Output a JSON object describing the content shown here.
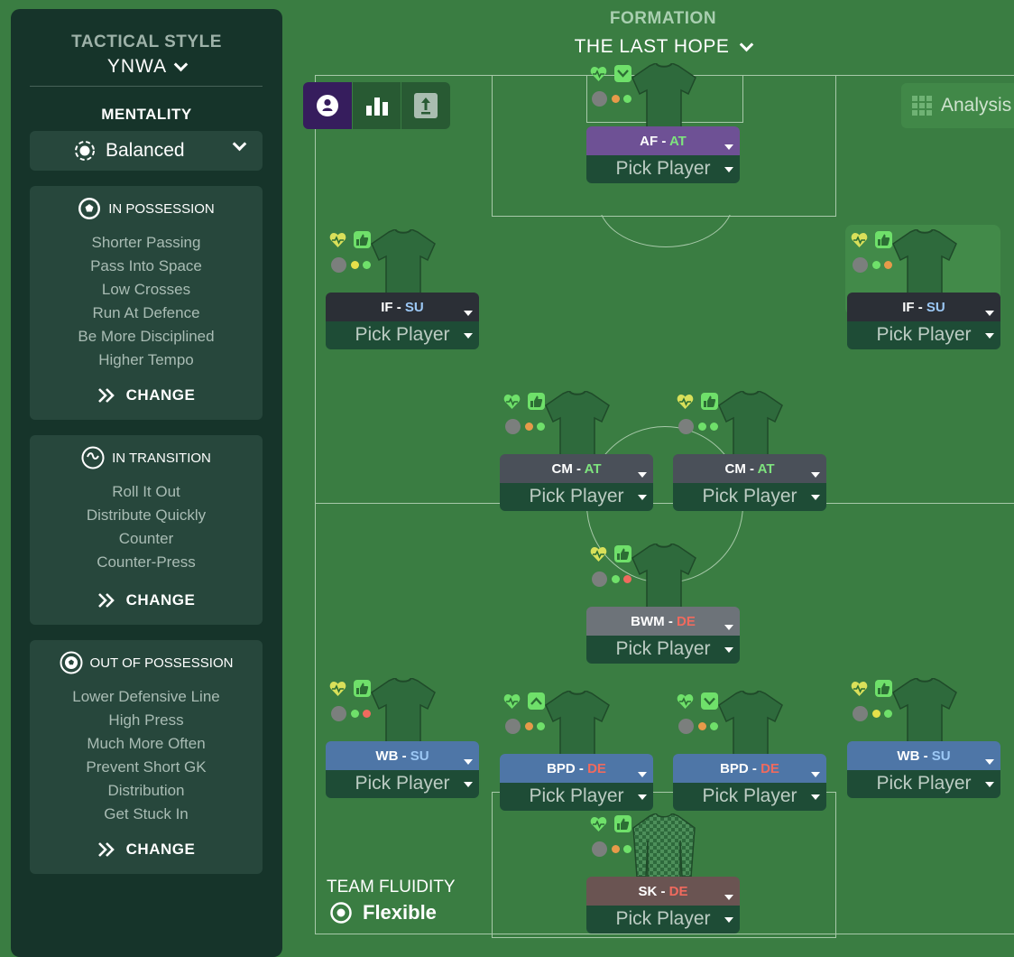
{
  "sidebar": {
    "tactical_style_label": "TACTICAL STYLE",
    "tactical_style_value": "YNWA",
    "mentality_label": "MENTALITY",
    "mentality_value": "Balanced",
    "in_possession": {
      "title": "IN POSSESSION",
      "items": [
        "Shorter Passing",
        "Pass Into Space",
        "Low Crosses",
        "Run At Defence",
        "Be More Disciplined",
        "Higher Tempo"
      ],
      "change_label": "CHANGE"
    },
    "in_transition": {
      "title": "IN TRANSITION",
      "items": [
        "Roll It Out",
        "Distribute Quickly",
        "Counter",
        "Counter-Press"
      ],
      "change_label": "CHANGE"
    },
    "out_of_possession": {
      "title": "OUT OF POSSESSION",
      "items": [
        "Lower Defensive Line",
        "High Press",
        "Much More Often",
        "Prevent Short GK",
        "Distribution",
        "Get Stuck In"
      ],
      "change_label": "CHANGE"
    }
  },
  "formation": {
    "label": "FORMATION",
    "name": "THE LAST HOPE"
  },
  "toolbar": {
    "analysis_label": "Analysis"
  },
  "team_fluidity": {
    "label": "TEAM FLUIDITY",
    "value": "Flexible"
  },
  "colors": {
    "attack": "#7ee37e",
    "support": "#9cc8f5",
    "defend": "#f06a5e",
    "bar_attack_striker": "#6e5195",
    "bar_inside_forward": "#2b2f36",
    "bar_midfield": "#4a5059",
    "bar_bwm": "#6d7379",
    "bar_defence": "#4e76a7",
    "bar_keeper": "#6a5452"
  },
  "slots": [
    {
      "role": "AF",
      "duty": "AT",
      "pick": "Pick Player",
      "bar": "striker",
      "heart": "green",
      "thumb_icon": "check-icon",
      "dots": [
        "#e79a4a",
        "#6fe06a"
      ]
    },
    {
      "role": "IF",
      "duty": "SU",
      "pick": "Pick Player",
      "bar": "inside-forward",
      "heart": "yellow",
      "thumb_icon": "thumbs-up-icon",
      "dots": [
        "#e6e04a",
        "#6fe06a"
      ]
    },
    {
      "role": "IF",
      "duty": "SU",
      "pick": "Pick Player",
      "bar": "inside-forward",
      "heart": "yellow",
      "thumb_icon": "thumbs-up-icon",
      "dots": [
        "#6fe06a",
        "#e79a4a"
      ]
    },
    {
      "role": "CM",
      "duty": "AT",
      "pick": "Pick Player",
      "bar": "midfield",
      "heart": "green",
      "thumb_icon": "thumbs-up-icon",
      "dots": [
        "#e79a4a",
        "#6fe06a"
      ]
    },
    {
      "role": "CM",
      "duty": "AT",
      "pick": "Pick Player",
      "bar": "midfield",
      "heart": "yellow",
      "thumb_icon": "thumbs-up-icon",
      "dots": [
        "#6fe06a",
        "#6fe06a"
      ]
    },
    {
      "role": "BWM",
      "duty": "DE",
      "pick": "Pick Player",
      "bar": "bwm",
      "heart": "yellow",
      "thumb_icon": "thumbs-up-icon",
      "dots": [
        "#6fe06a",
        "#f06a5e"
      ]
    },
    {
      "role": "WB",
      "duty": "SU",
      "pick": "Pick Player",
      "bar": "defence",
      "heart": "yellow",
      "thumb_icon": "thumbs-up-icon",
      "dots": [
        "#6fe06a",
        "#f06a5e"
      ]
    },
    {
      "role": "BPD",
      "duty": "DE",
      "pick": "Pick Player",
      "bar": "defence",
      "heart": "green",
      "thumb_icon": "chevron-up-icon",
      "dots": [
        "#e79a4a",
        "#6fe06a"
      ]
    },
    {
      "role": "BPD",
      "duty": "DE",
      "pick": "Pick Player",
      "bar": "defence",
      "heart": "green",
      "thumb_icon": "chevron-down-icon",
      "dots": [
        "#e79a4a",
        "#6fe06a"
      ]
    },
    {
      "role": "WB",
      "duty": "SU",
      "pick": "Pick Player",
      "bar": "defence",
      "heart": "yellow",
      "thumb_icon": "thumbs-up-icon",
      "dots": [
        "#e6e04a",
        "#6fe06a"
      ]
    },
    {
      "role": "SK",
      "duty": "DE",
      "pick": "Pick Player",
      "bar": "keeper",
      "heart": "green",
      "thumb_icon": "thumbs-up-icon",
      "dots": [
        "#e79a4a",
        "#6fe06a"
      ]
    }
  ]
}
